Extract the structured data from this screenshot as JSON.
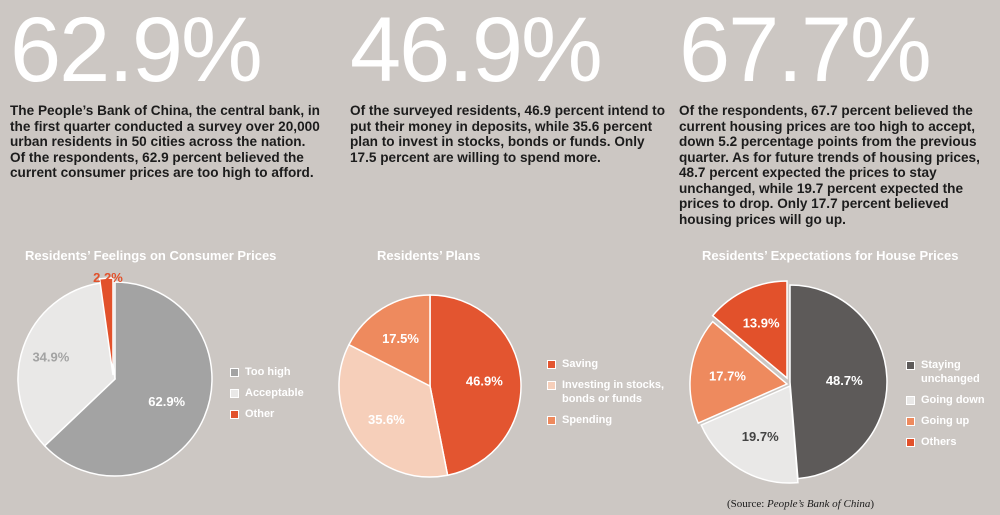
{
  "panels": [
    {
      "big_number": "62.9%",
      "paragraph": "The People’s Bank of China, the central bank, in the first quarter conducted a survey over 20,000 urban residents in 50 cities across the nation. Of the respondents, 62.9 percent believed the current consumer prices are too high to afford."
    },
    {
      "big_number": "46.9%",
      "paragraph": "Of the surveyed residents, 46.9 percent intend to put their money in deposits, while 35.6 percent plan to invest in stocks, bonds or funds. Only 17.5 percent are willing to spend more."
    },
    {
      "big_number": "67.7%",
      "paragraph": "Of the respondents, 67.7 percent believed the current housing prices are too high to accept, down 5.2 percentage points from the previous quarter. As for future trends of housing prices, 48.7 percent expected the prices to stay unchanged, while 19.7 percent expected the prices to drop. Only 17.7 percent believed housing prices will go up."
    }
  ],
  "chart_data": [
    {
      "type": "pie",
      "title": "Residents’ Feelings on Consumer Prices",
      "categories": [
        "Too high",
        "Acceptable",
        "Other"
      ],
      "values": [
        62.9,
        34.9,
        2.2
      ],
      "labels": [
        "62.9%",
        "34.9%",
        "2.2%"
      ],
      "colors": [
        "#a3a3a3",
        "#e9e8e7",
        "#e2512b"
      ],
      "label_colors": [
        "#ffffff",
        "#a3a3a3",
        "#e2512b"
      ],
      "legend_position": "right"
    },
    {
      "type": "pie",
      "title": "Residents’ Plans",
      "categories": [
        "Saving",
        "Investing in stocks, bonds or funds",
        "Spending"
      ],
      "values": [
        46.9,
        35.6,
        17.5
      ],
      "labels": [
        "46.9%",
        "35.6%",
        "17.5%"
      ],
      "colors": [
        "#e35530",
        "#f6cfba",
        "#ee8a5e"
      ],
      "label_colors": [
        "#ffffff",
        "#ffffff",
        "#ffffff"
      ],
      "legend_position": "right"
    },
    {
      "type": "pie",
      "title": "Residents’ Expectations for House Prices",
      "categories": [
        "Staying unchanged",
        "Going down",
        "Going up",
        "Others"
      ],
      "values": [
        48.7,
        19.7,
        17.7,
        13.9
      ],
      "labels": [
        "48.7%",
        "19.7%",
        "17.7%",
        "13.9%"
      ],
      "colors": [
        "#5d5a59",
        "#e9e8e7",
        "#ee8a5e",
        "#e2512b"
      ],
      "label_colors": [
        "#ffffff",
        "#444444",
        "#ffffff",
        "#ffffff"
      ],
      "legend_position": "right"
    }
  ],
  "source": {
    "prefix": "(Source: ",
    "name": "People’s Bank of China",
    "suffix": ")"
  }
}
